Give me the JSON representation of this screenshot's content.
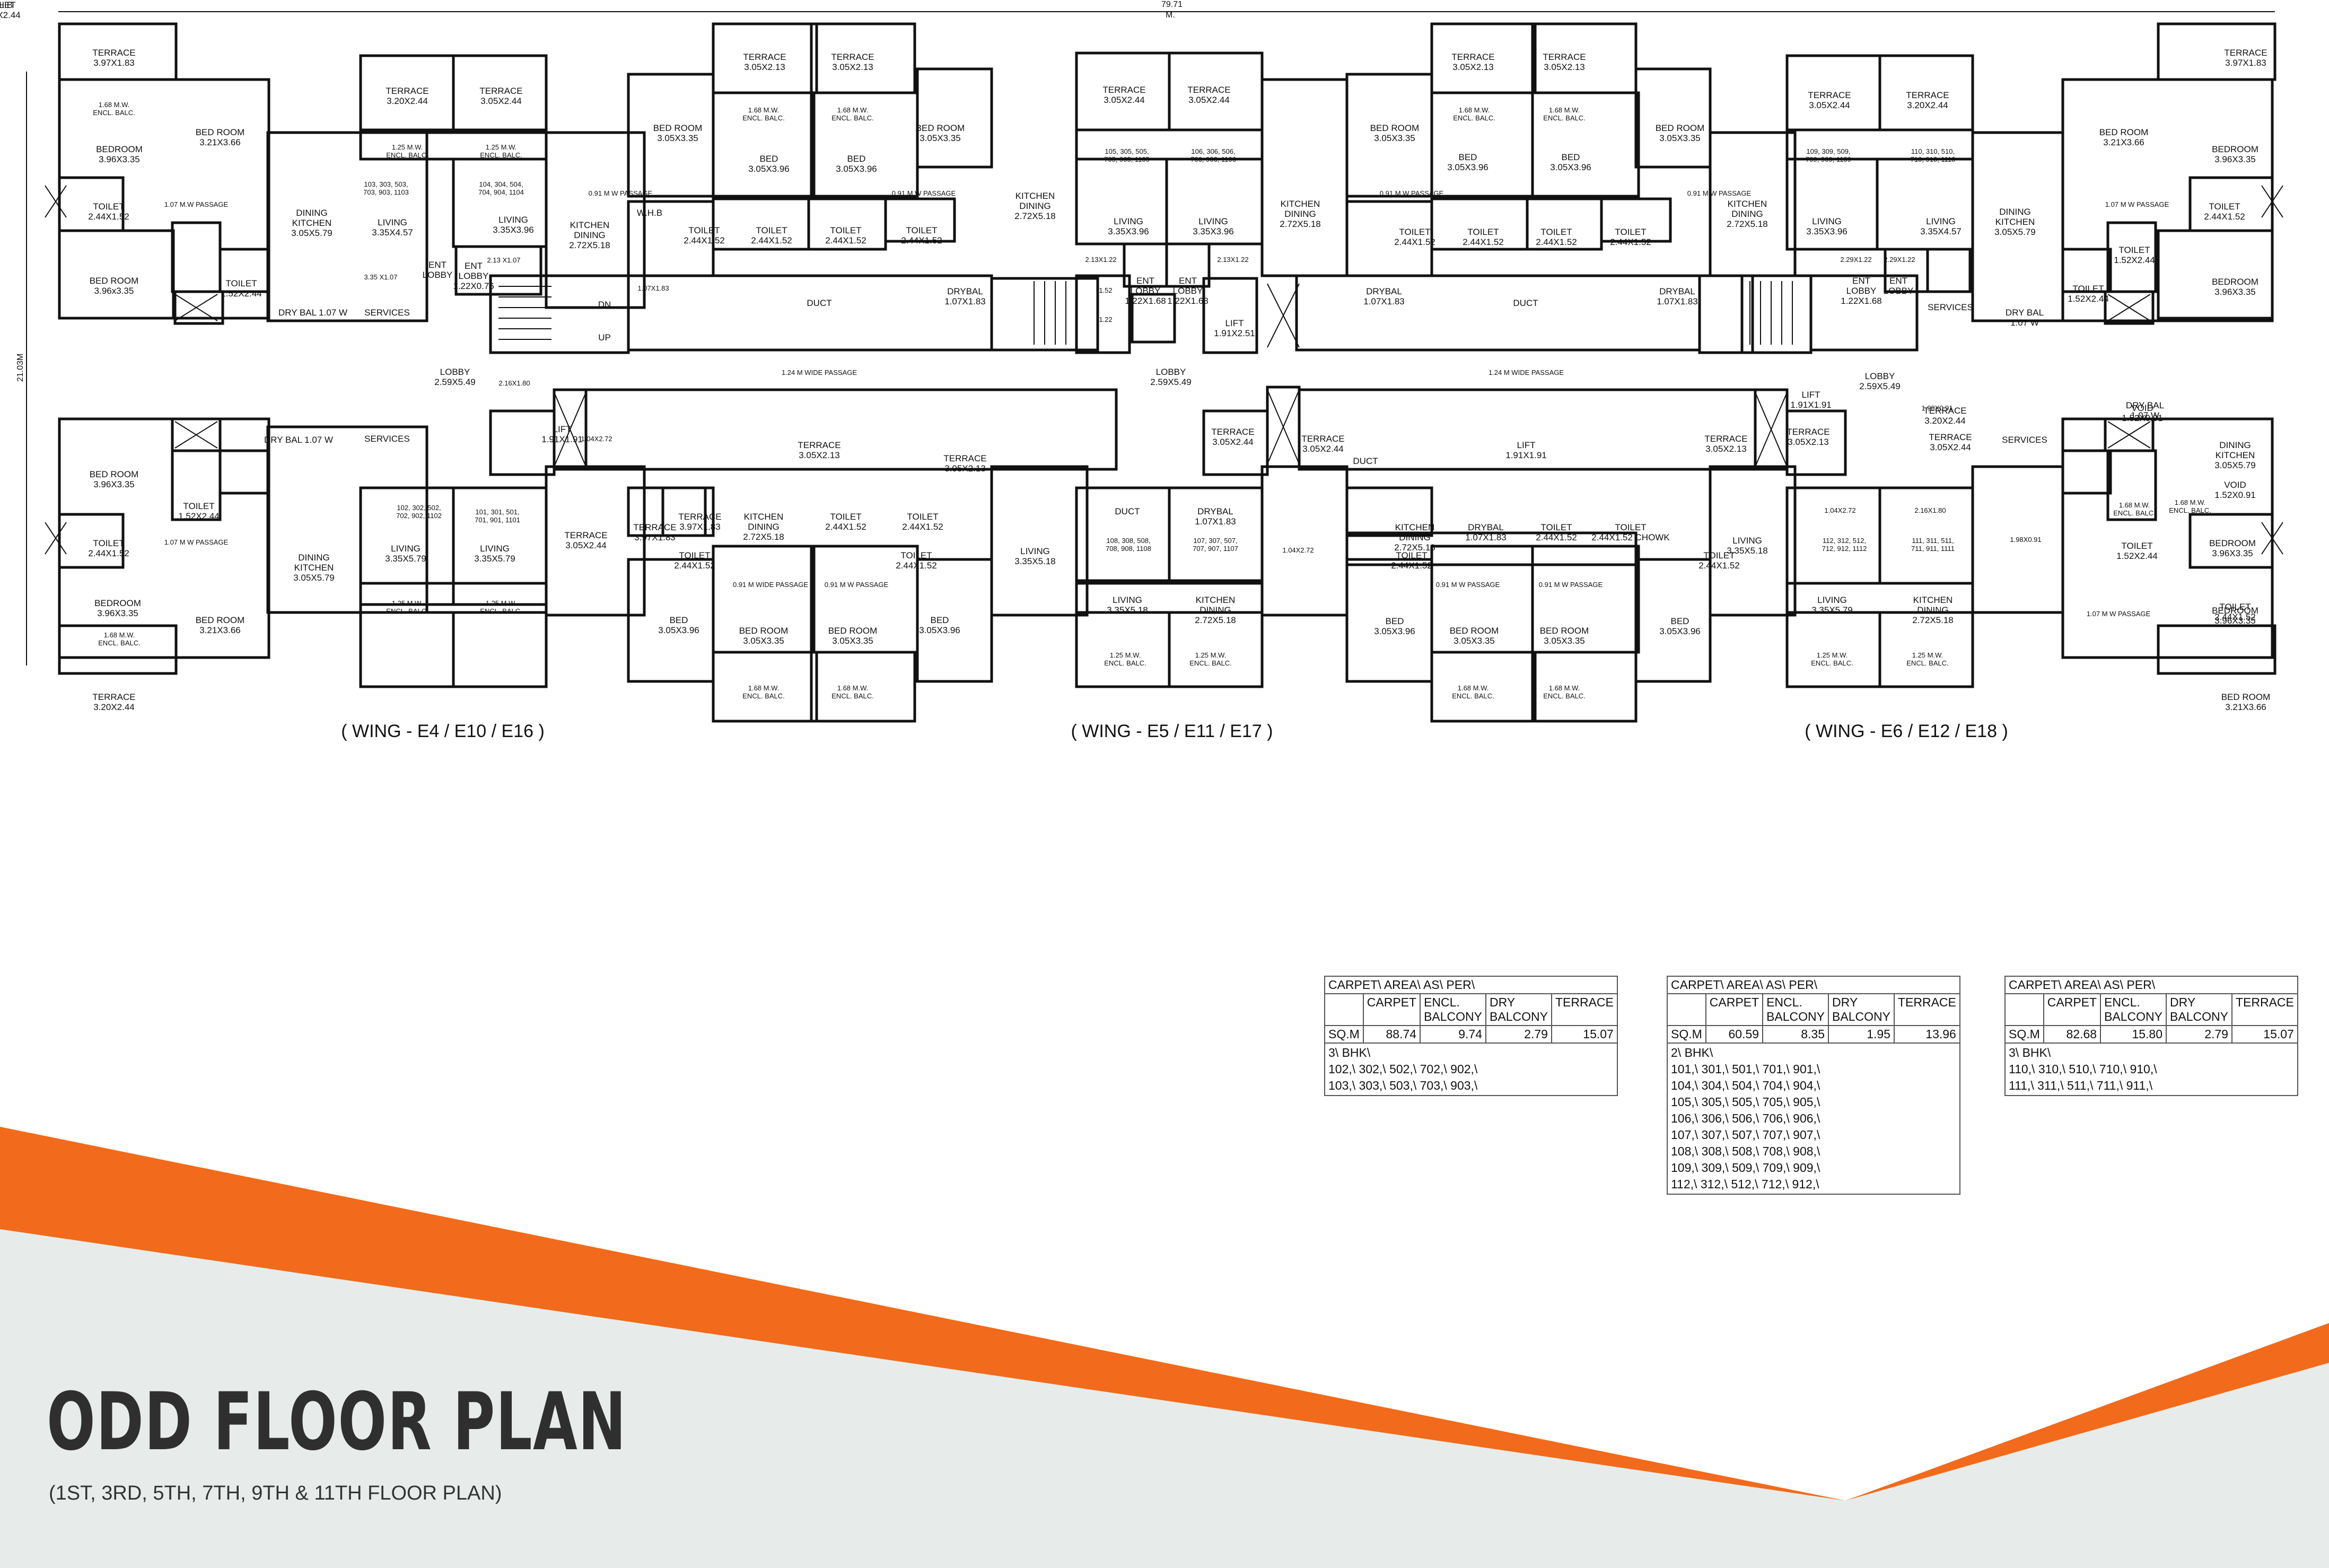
{
  "plan": {
    "overall_width": "79.71",
    "overall_width_unit": "M.",
    "overall_height": "21.03M",
    "wings": [
      "( WING - E4 / E10 / E16 )",
      "( WING - E5 / E11 / E17 )",
      "( WING - E6 / E12 / E18 )"
    ],
    "labels": [
      {
        "t": "TERRACE\n3.97X1.83"
      },
      {
        "t": "1.68 M.W.\nENCL. BALC."
      },
      {
        "t": "BEDROOM\n3.96X3.35"
      },
      {
        "t": "BED ROOM\n3.21X3.66"
      },
      {
        "t": "TOILET\n2.44X1.52"
      },
      {
        "t": "1.07 M.W PASSAGE"
      },
      {
        "t": "BED ROOM\n3.96x3.35"
      },
      {
        "t": "TOILET\n1.52X2.44"
      },
      {
        "t": "DRY BAL   1.07 W"
      },
      {
        "t": "SERVICES"
      },
      {
        "t": "TERRACE\n3.20X2.44"
      },
      {
        "t": "TERRACE\n3.05X2.44"
      },
      {
        "t": "1.25 M.W.\nENCL. BALC."
      },
      {
        "t": "1.25 M.W.\nENCL. BALC."
      },
      {
        "t": "103, 303, 503,\n703, 903, 1103"
      },
      {
        "t": "104, 304, 504,\n704, 904, 1104"
      },
      {
        "t": "DINING\nKITCHEN\n3.05X5.79"
      },
      {
        "t": "LIVING\n3.35X4.57"
      },
      {
        "t": "LIVING\n3.35X3.96"
      },
      {
        "t": "KITCHEN\nDINING\n2.72X5.18"
      },
      {
        "t": "ENT\nLOBBY"
      },
      {
        "t": "ENT\nLOBBY\n1.22X0.76"
      },
      {
        "t": "2.13 X1.07"
      },
      {
        "t": "3.35 X1.07"
      },
      {
        "t": "BED ROOM\n3.05X3.35"
      },
      {
        "t": "TERRACE\n3.05X2.13"
      },
      {
        "t": "TERRACE\n3.05X2.13"
      },
      {
        "t": "1.68 M.W.\nENCL. BALC."
      },
      {
        "t": "1.68 M.W.\nENCL. BALC."
      },
      {
        "t": "BED\n3.05X3.96"
      },
      {
        "t": "BED\n3.05X3.96"
      },
      {
        "t": "BED ROOM\n3.05X3.35"
      },
      {
        "t": "0.91 M W PASSAGE"
      },
      {
        "t": "0.91 M W PASSAGE"
      },
      {
        "t": "W.H.B"
      },
      {
        "t": "TOILET\n2.44X1.52"
      },
      {
        "t": "TOILET\n2.44X1.52"
      },
      {
        "t": "TOILET\n2.44X1.52"
      },
      {
        "t": "TOILET\n2.44X1.52"
      },
      {
        "t": "KITCHEN\nDINING\n2.72X5.18"
      },
      {
        "t": "DUCT"
      },
      {
        "t": "1.24 M WIDE PASSAGE"
      },
      {
        "t": "DRYBAL\n1.07X1.83"
      },
      {
        "t": "1.07X1.83"
      },
      {
        "t": "LOBBY\n2.59X5.49"
      },
      {
        "t": "2.16X1.80"
      },
      {
        "t": "LIFT\n1.91X1.91"
      },
      {
        "t": "1.04X2.72"
      },
      {
        "t": "DN"
      },
      {
        "t": "UP"
      },
      {
        "t": "TERRACE\n3.05X2.44"
      },
      {
        "t": "TERRACE\n3.05X2.44"
      },
      {
        "t": "105, 305, 505,\n705, 905, 1105"
      },
      {
        "t": "106, 306, 506,\n706, 906, 1106"
      },
      {
        "t": "LIVING\n3.35X3.96"
      },
      {
        "t": "LIVING\n3.35X3.96"
      },
      {
        "t": "2.13X1.22"
      },
      {
        "t": "ENT\nLOBBY\n1.22X1.68"
      },
      {
        "t": "ENT\nLOBBY\n1.22X1.68"
      },
      {
        "t": "2.13X1.22"
      },
      {
        "t": "LIFT\n1.91X2.51"
      },
      {
        "t": "LOBBY\n2.59X5.49"
      },
      {
        "t": "1.52"
      },
      {
        "t": "1.22"
      },
      {
        "t": "KITCHEN\nDINING\n2.72X5.18"
      },
      {
        "t": "DRYBAL\n1.07X1.83"
      },
      {
        "t": "BED ROOM\n3.05X3.35"
      },
      {
        "t": "BED\n3.05X3.96"
      },
      {
        "t": "BED\n3.05X3.96"
      },
      {
        "t": "BED ROOM\n3.05X3.35"
      },
      {
        "t": "TERRACE\n3.05X2.13"
      },
      {
        "t": "TERRACE\n3.05X2.13"
      },
      {
        "t": "1.68 M.W.\nENCL. BALC."
      },
      {
        "t": "1.68 M.W.\nENCL. BALC."
      },
      {
        "t": "0.91 M W PASSAGE"
      },
      {
        "t": "0.91 M W PASSAGE"
      },
      {
        "t": "TOILET\n2.44X1.52"
      },
      {
        "t": "TOILET\n2.44X1.52"
      },
      {
        "t": "TOILET\n2.44X1.52"
      },
      {
        "t": "TOILET\n2.44X1.52"
      },
      {
        "t": "DUCT"
      },
      {
        "t": "1.24 M WIDE PASSAGE"
      },
      {
        "t": "DRYBAL\n1.07X1.83"
      },
      {
        "t": "KITCHEN\nDINING\n2.72X5.18"
      },
      {
        "t": "TERRACE\n3.05X2.44"
      },
      {
        "t": "TERRACE\n3.20X2.44"
      },
      {
        "t": "109, 309, 509,\n709, 909, 1109"
      },
      {
        "t": "110, 310, 510,\n710, 910, 1110"
      },
      {
        "t": "LIVING\n3.35X3.96"
      },
      {
        "t": "LIVING\n3.35X4.57"
      },
      {
        "t": "2.29X1.22"
      },
      {
        "t": "ENT\nLOBBY\n1.22X1.68"
      },
      {
        "t": "ENT\nLOBBY"
      },
      {
        "t": "2.29X1.22"
      },
      {
        "t": "LOBBY\n2.59X5.49"
      },
      {
        "t": "DINING\nKITCHEN\n3.05X5.79"
      },
      {
        "t": "TERRACE\n3.97X1.83"
      },
      {
        "t": "BED ROOM\n3.21X3.66"
      },
      {
        "t": "BEDROOM\n3.96X3.35"
      },
      {
        "t": "TOILET\n2.44X1.52"
      },
      {
        "t": "1.07 M W PASSAGE"
      },
      {
        "t": "TOILET\n1.52X2.44"
      },
      {
        "t": "BEDROOM\n3.96X3.35"
      },
      {
        "t": "SERVICES"
      },
      {
        "t": "DRY BAL\n1.07 W"
      },
      {
        "t": "TOILET\n1.52X2.44"
      },
      {
        "t": "1.98X0.91"
      },
      {
        "t": "VOID\n1.52X0.91"
      },
      {
        "t": "BED ROOM\n3.96X3.35"
      },
      {
        "t": "TOILET\n1.52X2.44"
      },
      {
        "t": "DRY BAL   1.07 W"
      },
      {
        "t": "SERVICES"
      },
      {
        "t": "TOILET\n2.44X1.52"
      },
      {
        "t": "1.07 M W PASSAGE"
      },
      {
        "t": "DINING\nKITCHEN\n3.05X5.79"
      },
      {
        "t": "LIVING\n3.35X5.79"
      },
      {
        "t": "LIVING\n3.35X5.79"
      },
      {
        "t": "102, 302, 502,\n702, 902, 1102"
      },
      {
        "t": "101, 301, 501,\n701, 901, 1101"
      },
      {
        "t": "BEDROOM\n3.96X3.35"
      },
      {
        "t": "BED ROOM\n3.21X3.66"
      },
      {
        "t": "1.68 M.W.\nENCL. BALC."
      },
      {
        "t": "1.25 M.W.\nENCL. BALC."
      },
      {
        "t": "1.25 M.W.\nENCL. BALC."
      },
      {
        "t": "TERRACE\n3.20X2.44"
      },
      {
        "t": "TERRACE\n3.05X2.44"
      },
      {
        "t": "TERRACE\n3.97X1.83"
      },
      {
        "t": "KITCHEN\nDINING\n2.72X5.18"
      },
      {
        "t": "TOILET\n2.44X1.52"
      },
      {
        "t": "TOILET\n2.44X1.52"
      },
      {
        "t": "TOILET\n2.44X1.52"
      },
      {
        "t": "TOILET\n2.44X1.52"
      },
      {
        "t": "0.91 M  WIDE PASSAGE"
      },
      {
        "t": "0.91 M W PASSAGE"
      },
      {
        "t": "BED\n3.05X3.96"
      },
      {
        "t": "BED\n3.05X3.96"
      },
      {
        "t": "BED ROOM\n3.05X3.35"
      },
      {
        "t": "BED ROOM\n3.05X3.35"
      },
      {
        "t": "1.68 M.W.\nENCL. BALC."
      },
      {
        "t": "1.68 M.W.\nENCL. BALC."
      },
      {
        "t": "TERRACE\n3.05X2.13"
      },
      {
        "t": "TERRACE\n3.05X2.13"
      },
      {
        "t": "DUCT"
      },
      {
        "t": "DRYBAL\n1.07X1.83"
      },
      {
        "t": "108, 308, 508,\n708, 908, 1108"
      },
      {
        "t": "107, 307, 507,\n707, 907, 1107"
      },
      {
        "t": "LIVING\n3.35X5.18"
      },
      {
        "t": "LIVING\n3.35X5.18"
      },
      {
        "t": "KITCHEN\nDINING\n2.72X5.18"
      },
      {
        "t": "1.25 M.W.\nENCL. BALC."
      },
      {
        "t": "1.25 M.W.\nENCL. BALC."
      },
      {
        "t": "TERRACE\n3.05X2.44"
      },
      {
        "t": "TERRACE\n3.05X2.44"
      },
      {
        "t": "LIFT\n1.91X1.91"
      },
      {
        "t": "1.04X2.72"
      },
      {
        "t": "DUCT"
      },
      {
        "t": "KITCHEN\nDINING\n2.72X5.18"
      },
      {
        "t": "DRYBAL\n1.07X1.83"
      },
      {
        "t": "TOILET\n2.44X1.52"
      },
      {
        "t": "TOILET\n2.44X1.52 CHOWK"
      },
      {
        "t": "TOILET\n2.44X1.52"
      },
      {
        "t": "TOILET\n2.44X1.52"
      },
      {
        "t": "0.91 M W PASSAGE"
      },
      {
        "t": "0.91 M W PASSAGE"
      },
      {
        "t": "BED\n3.05X3.96"
      },
      {
        "t": "BED\n3.05X3.96"
      },
      {
        "t": "BED ROOM\n3.05X3.35"
      },
      {
        "t": "BED ROOM\n3.05X3.35"
      },
      {
        "t": "1.68 M.W.\nENCL. BALC."
      },
      {
        "t": "1.68 M.W.\nENCL. BALC."
      },
      {
        "t": "TERRACE\n3.05X2.13"
      },
      {
        "t": "TERRACE\n3.05X2.13"
      },
      {
        "t": "LIFT\n1.91X1.91"
      },
      {
        "t": "1.04X2.72"
      },
      {
        "t": "2.16X1.80"
      },
      {
        "t": "112, 312, 512,\n712, 912, 1112"
      },
      {
        "t": "111, 311, 511,\n711, 911, 1111"
      },
      {
        "t": "LIVING\n3.35X5.18"
      },
      {
        "t": "LIVING\n3.35X5.79"
      },
      {
        "t": "KITCHEN\nDINING\n2.72X5.18"
      },
      {
        "t": "1.25 M.W.\nENCL. BALC."
      },
      {
        "t": "1.25 M.W.\nENCL. BALC."
      },
      {
        "t": "TERRACE\n3.05X2.44"
      },
      {
        "t": "TERRACE\n3.20X2.44"
      },
      {
        "t": "SERVICES"
      },
      {
        "t": "1.98X0.91"
      },
      {
        "t": "DRY BAL\n1.07 W"
      },
      {
        "t": "DINING\nKITCHEN\n3.05X5.79"
      },
      {
        "t": "VOID\n1.52X0.91"
      },
      {
        "t": "1.68 M.W.\nENCL. BALC."
      },
      {
        "t": "BEDROOM\n3.96X3.35"
      },
      {
        "t": "TOILET\n1.52X2.44"
      },
      {
        "t": "TOILET\n2.44X1.52"
      },
      {
        "t": "1.07 M W PASSAGE"
      },
      {
        "t": "BEDROOM\n3.96X3.35"
      },
      {
        "t": "BED ROOM\n3.21X3.66"
      },
      {
        "t": "1.68 M.W.\nENCL. BALC."
      },
      {
        "t": "TERRACE\n3.97X1.83"
      },
      {
        "t": "TOILET\n1.52X2.44"
      },
      {
        "t": "W.H.B"
      }
    ]
  },
  "tables": [
    {
      "header": "CARPET\\ AREA\\ AS\\ PER\\",
      "columns": [
        "CARPET",
        "ENCL.\nBALCONY",
        "DRY\nBALCONY",
        "TERRACE"
      ],
      "row_label": "SQ.M",
      "values": [
        "88.74",
        "9.74",
        "2.79",
        "15.07"
      ],
      "type": "3\\ BHK\\",
      "units": [
        "102,\\ 302,\\ 502,\\ 702,\\ 902,\\",
        "103,\\ 303,\\ 503,\\ 703,\\ 903,\\"
      ]
    },
    {
      "header": "CARPET\\ AREA\\ AS\\ PER\\",
      "columns": [
        "CARPET",
        "ENCL.\nBALCONY",
        "DRY\nBALCONY",
        "TERRACE"
      ],
      "row_label": "SQ.M",
      "values": [
        "60.59",
        "8.35",
        "1.95",
        "13.96"
      ],
      "type": "2\\ BHK\\",
      "units": [
        "101,\\ 301,\\ 501,\\ 701,\\ 901,\\",
        "104,\\ 304,\\ 504,\\ 704,\\ 904,\\",
        "105,\\ 305,\\ 505,\\ 705,\\ 905,\\",
        "106,\\ 306,\\ 506,\\ 706,\\ 906,\\",
        "107,\\ 307,\\ 507,\\ 707,\\ 907,\\",
        "108,\\ 308,\\ 508,\\ 708,\\ 908,\\",
        "109,\\ 309,\\ 509,\\ 709,\\ 909,\\",
        "112,\\ 312,\\ 512,\\ 712,\\ 912,\\"
      ]
    },
    {
      "header": "CARPET\\ AREA\\ AS\\ PER\\",
      "columns": [
        "CARPET",
        "ENCL.\nBALCONY",
        "DRY\nBALCONY",
        "TERRACE"
      ],
      "row_label": "SQ.M",
      "values": [
        "82.68",
        "15.80",
        "2.79",
        "15.07"
      ],
      "type": "3\\ BHK\\",
      "units": [
        "110,\\ 310,\\ 510,\\ 710,\\ 910,\\",
        "111,\\ 311,\\ 511,\\ 711,\\ 911,\\"
      ]
    }
  ],
  "title": "ODD FLOOR PLAN",
  "subtitle": "(1ST, 3RD, 5TH, 7TH, 9TH & 11TH FLOOR PLAN)",
  "colors": {
    "accent": "#f26a1b",
    "band": "#e7ecea",
    "title": "#2f2f2f"
  }
}
